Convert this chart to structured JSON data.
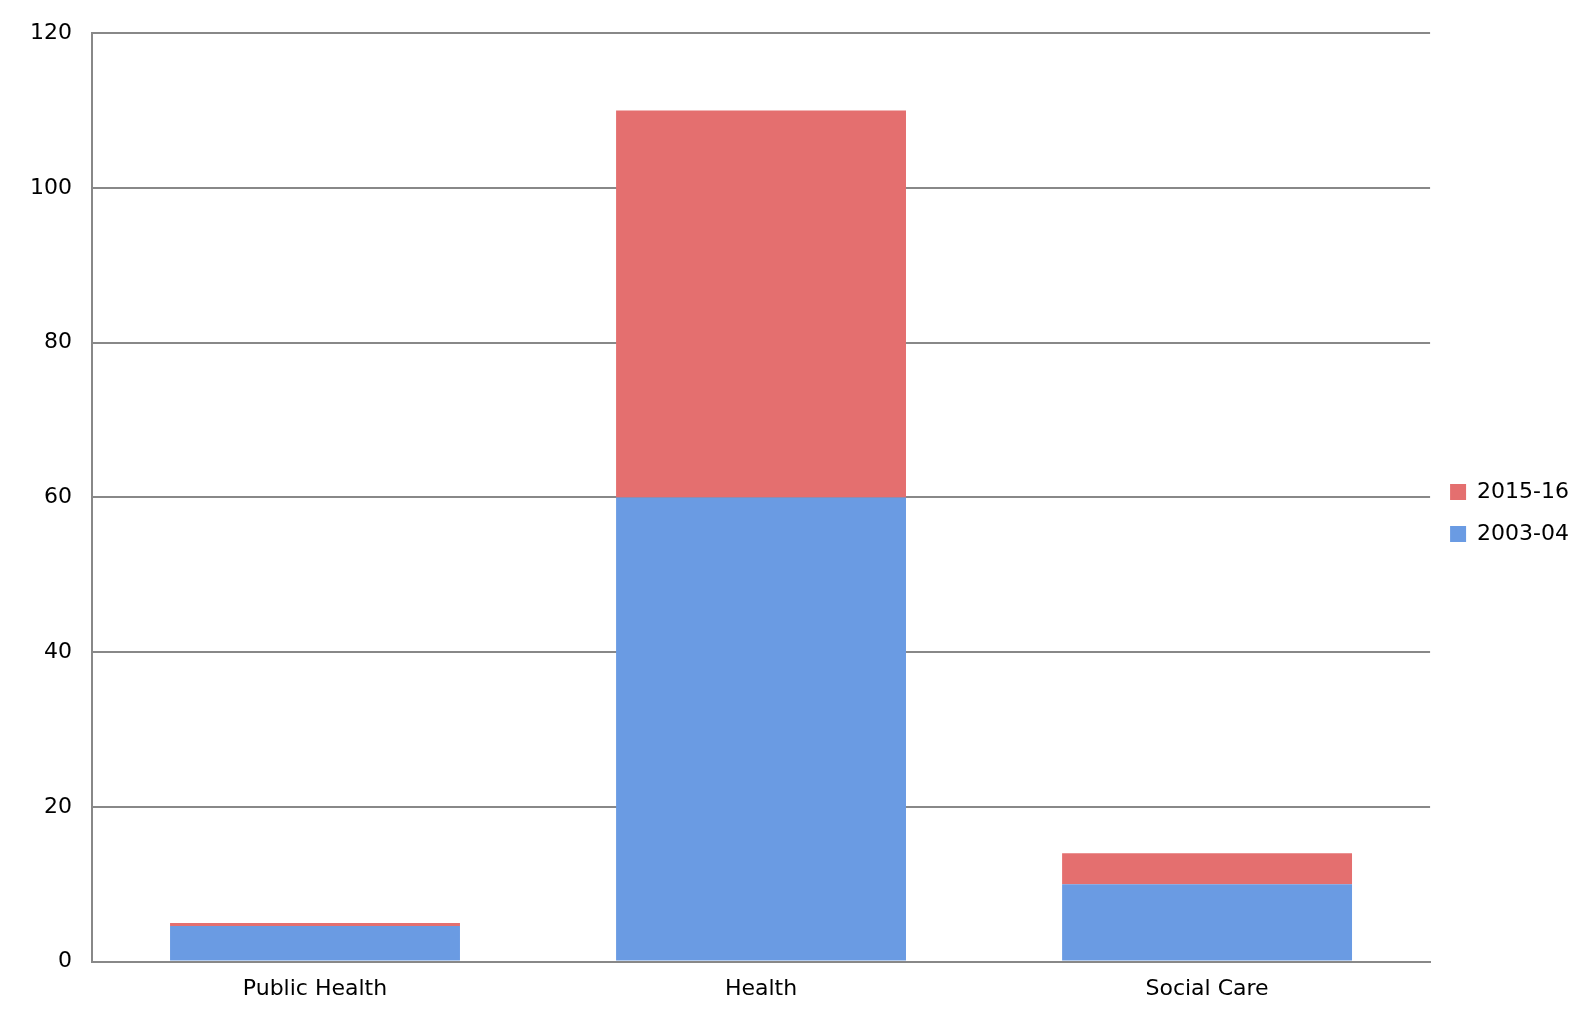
{
  "chart_data": {
    "type": "bar",
    "stacked": true,
    "categories": [
      "Public Health",
      "Health",
      "Social Care"
    ],
    "series": [
      {
        "name": "2003-04",
        "color": "#6a9be3",
        "values": [
          4.6,
          60,
          10
        ]
      },
      {
        "name": "2015-16",
        "color": "#e46f6f",
        "values": [
          0.4,
          50,
          4
        ]
      }
    ],
    "ylim": [
      0,
      120
    ],
    "yticks": [
      0,
      20,
      40,
      60,
      80,
      100,
      120
    ],
    "grid": "y",
    "legend": "right"
  }
}
